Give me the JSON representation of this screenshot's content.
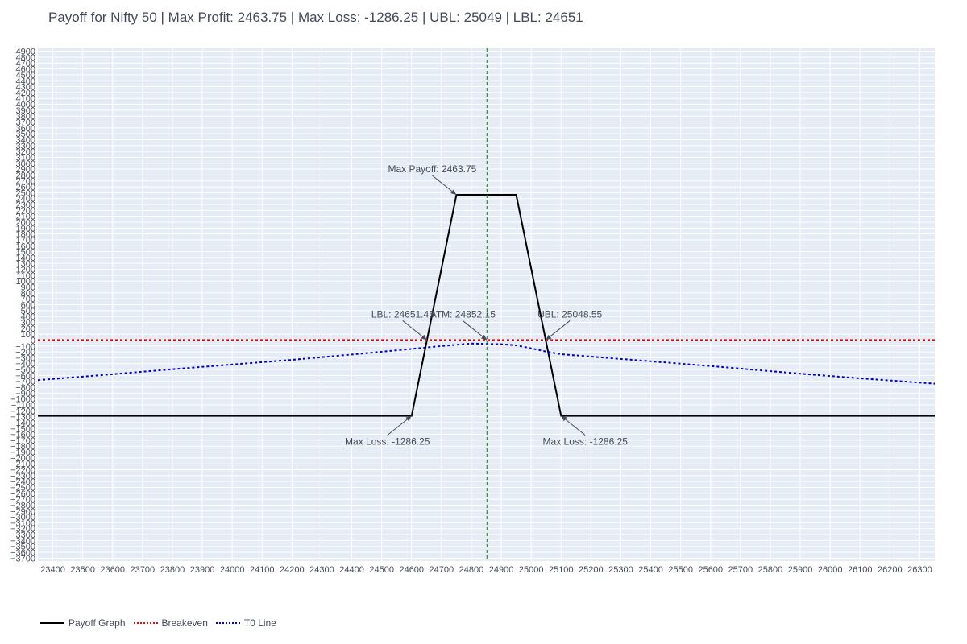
{
  "chart_data": {
    "type": "line",
    "title": "Payoff for Nifty 50 | Max Profit: 2463.75 | Max Loss: -1286.25 | UBL: 25049 | LBL: 24651",
    "xlabel": "",
    "ylabel": "",
    "xlim": [
      23350,
      26350
    ],
    "ylim": [
      -3750,
      4950
    ],
    "x_ticks": [
      23400,
      23500,
      23600,
      23700,
      23800,
      23900,
      24000,
      24100,
      24200,
      24300,
      24400,
      24500,
      24600,
      24700,
      24800,
      24900,
      25000,
      25100,
      25200,
      25300,
      25400,
      25500,
      25600,
      25700,
      25800,
      25900,
      26000,
      26100,
      26200,
      26300
    ],
    "y_tick_step": 100,
    "y_tick_range": [
      -3700,
      4900
    ],
    "grid": true,
    "legend_position": "bottom-left",
    "series": [
      {
        "name": "Payoff Graph",
        "color": "#000000",
        "dash": "solid",
        "x": [
          23350,
          24600,
          24750,
          24950,
          25100,
          26350
        ],
        "y": [
          -1286.25,
          -1286.25,
          2463.75,
          2463.75,
          -1286.25,
          -1286.25
        ]
      },
      {
        "name": "Breakeven",
        "color": "#ff0000",
        "dash": "dot",
        "x": [
          23350,
          26350
        ],
        "y": [
          0,
          0
        ]
      },
      {
        "name": "T0 Line",
        "color": "#0000cc",
        "dash": "dot",
        "x": [
          23350,
          23600,
          23800,
          24000,
          24200,
          24400,
          24600,
          24700,
          24800,
          24900,
          24950,
          25000,
          25050,
          25100,
          25300,
          25500,
          25700,
          25900,
          26100,
          26350
        ],
        "y": [
          -680,
          -580,
          -495,
          -415,
          -335,
          -245,
          -150,
          -100,
          -60,
          -70,
          -90,
          -140,
          -195,
          -240,
          -320,
          -400,
          -485,
          -570,
          -650,
          -740
        ]
      }
    ],
    "vlines": [
      {
        "x": 24852.15,
        "color": "#008000",
        "dash": "dash"
      }
    ],
    "annotations": [
      {
        "text": "Max Payoff: 2463.75",
        "x": 24750,
        "y": 2463.75,
        "pos": "above-left"
      },
      {
        "text": "ATM: 24852.15",
        "x": 24852.15,
        "y": 0,
        "pos": "above-left"
      },
      {
        "text": "LBL: 24651.45",
        "x": 24651.45,
        "y": 0,
        "pos": "above-left"
      },
      {
        "text": "UBL: 25048.55",
        "x": 25048.55,
        "y": 0,
        "pos": "above-right"
      },
      {
        "text": "Max Loss: -1286.25",
        "x": 24600,
        "y": -1286.25,
        "pos": "below-left"
      },
      {
        "text": "Max Loss: -1286.25",
        "x": 25100,
        "y": -1286.25,
        "pos": "below-right"
      }
    ]
  },
  "colors": {
    "plot_bg": "#e5ecf6",
    "grid": "#ffffff",
    "text": "#444a5a"
  }
}
